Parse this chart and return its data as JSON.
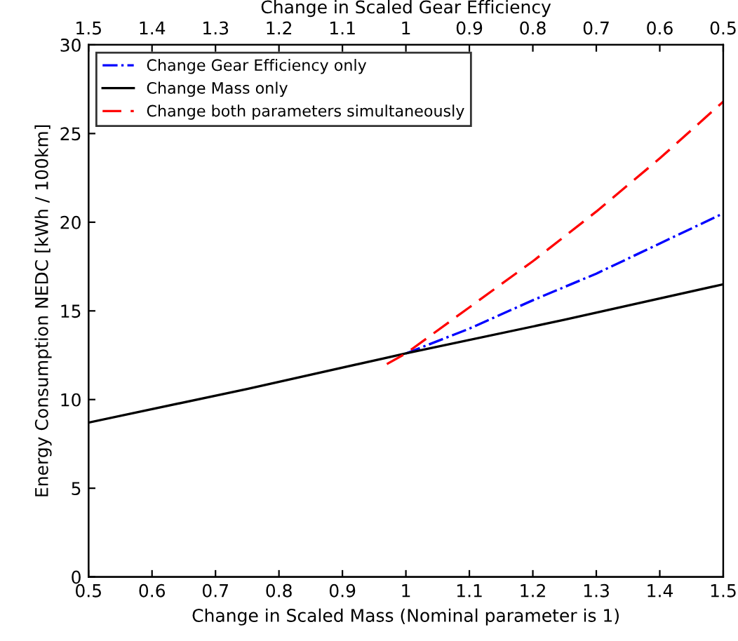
{
  "chart_data": {
    "type": "line",
    "xlabel": "Change in Scaled Mass (Nominal parameter is 1)",
    "ylabel": "Energy Consumption NEDC [kWh / 100km]",
    "x2label": "Change in Scaled Gear Efficiency",
    "xlim": [
      0.5,
      1.5
    ],
    "xticks": [
      0.5,
      0.6,
      0.7,
      0.8,
      0.9,
      1,
      1.1,
      1.2,
      1.3,
      1.4,
      1.5
    ],
    "x2lim": [
      1.5,
      0.5
    ],
    "x2ticks": [
      1.5,
      1.4,
      1.3,
      1.2,
      1.1,
      1,
      0.9,
      0.8,
      0.7,
      0.6,
      0.5
    ],
    "ylim": [
      0,
      30
    ],
    "yticks": [
      0,
      5,
      10,
      15,
      20,
      25,
      30
    ],
    "grid": false,
    "legend": "top left",
    "series": [
      {
        "name": "Change Gear Efficiency only",
        "color": "#0000ff",
        "line_style": "dashdot",
        "x": [
          1.0,
          1.1,
          1.2,
          1.3,
          1.4,
          1.5
        ],
        "values": [
          12.6,
          14.0,
          15.6,
          17.1,
          18.8,
          20.5
        ]
      },
      {
        "name": "Change Mass only",
        "color": "#000000",
        "line_style": "solid",
        "x": [
          0.5,
          0.75,
          1.0,
          1.25,
          1.5
        ],
        "values": [
          8.7,
          10.6,
          12.6,
          14.5,
          16.5
        ]
      },
      {
        "name": "Change both parameters simultaneously",
        "color": "#ff0000",
        "line_style": "dashed",
        "x": [
          0.97,
          1.0,
          1.1,
          1.2,
          1.3,
          1.4,
          1.5
        ],
        "values": [
          12.0,
          12.6,
          15.2,
          17.8,
          20.6,
          23.6,
          26.8
        ]
      }
    ]
  }
}
